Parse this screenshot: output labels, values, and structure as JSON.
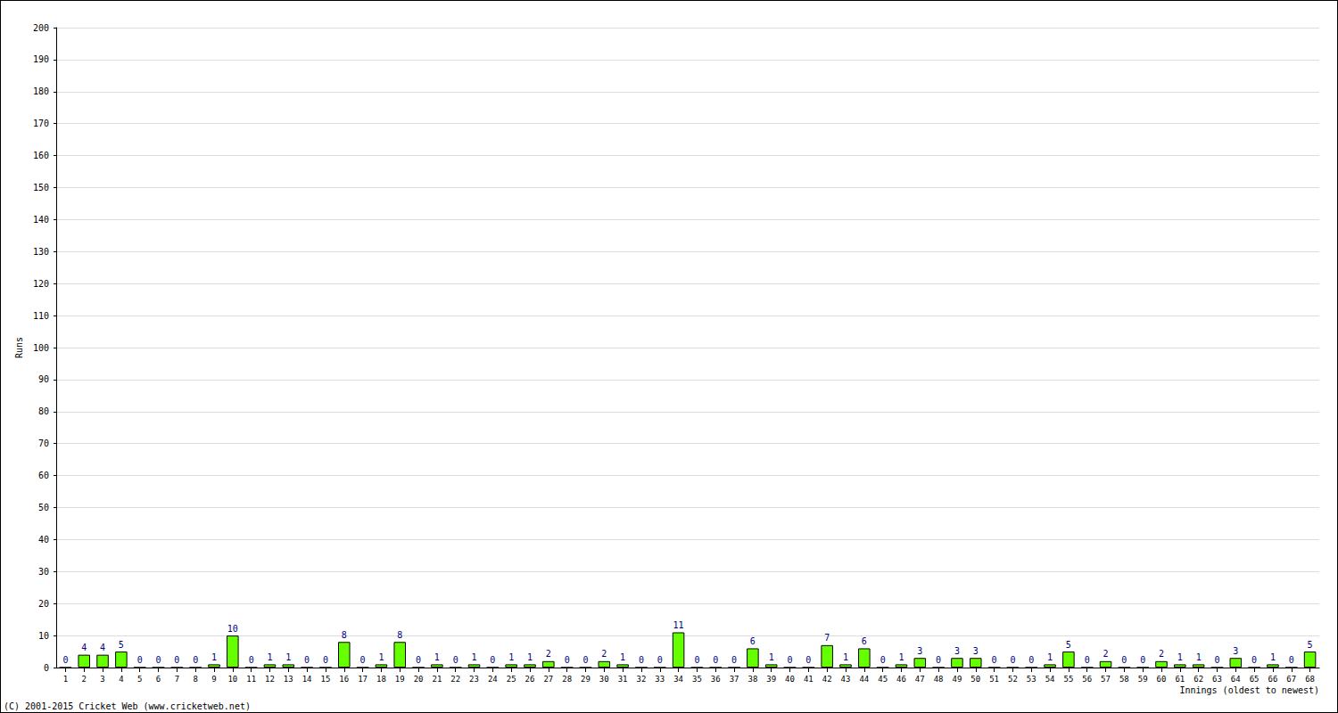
{
  "chart_data": {
    "type": "bar",
    "y_label": "Runs",
    "x_label": "Innings (oldest to newest)",
    "annotations": [
      "(C) 2001-2015 Cricket Web (www.cricketweb.net)"
    ],
    "categories": [
      "1",
      "2",
      "3",
      "4",
      "5",
      "6",
      "7",
      "8",
      "9",
      "10",
      "11",
      "12",
      "13",
      "14",
      "15",
      "16",
      "17",
      "18",
      "19",
      "20",
      "21",
      "22",
      "23",
      "24",
      "25",
      "26",
      "27",
      "28",
      "29",
      "30",
      "31",
      "32",
      "33",
      "34",
      "35",
      "36",
      "37",
      "38",
      "39",
      "40",
      "41",
      "42",
      "43",
      "44",
      "45",
      "46",
      "47",
      "48",
      "49",
      "50",
      "51",
      "52",
      "53",
      "54",
      "55",
      "56",
      "57",
      "58",
      "59",
      "60",
      "61",
      "62",
      "63",
      "64",
      "65",
      "66",
      "67",
      "68"
    ],
    "values": [
      0,
      4,
      4,
      5,
      0,
      0,
      0,
      0,
      1,
      10,
      0,
      1,
      1,
      0,
      0,
      8,
      0,
      1,
      8,
      0,
      1,
      0,
      1,
      0,
      1,
      1,
      2,
      0,
      0,
      2,
      1,
      0,
      0,
      11,
      0,
      0,
      0,
      6,
      1,
      0,
      0,
      7,
      1,
      6,
      0,
      1,
      3,
      0,
      3,
      3,
      0,
      0,
      0,
      1,
      5,
      0,
      2,
      0,
      0,
      2,
      1,
      1,
      0,
      3,
      0,
      1,
      0,
      5
    ],
    "color": "#66ff00",
    "ylim": [
      0,
      200
    ],
    "yticks": [
      0,
      10,
      20,
      30,
      40,
      50,
      60,
      70,
      80,
      90,
      100,
      110,
      120,
      130,
      140,
      150,
      160,
      170,
      180,
      190,
      200
    ],
    "grid": true,
    "data_labels": true
  }
}
